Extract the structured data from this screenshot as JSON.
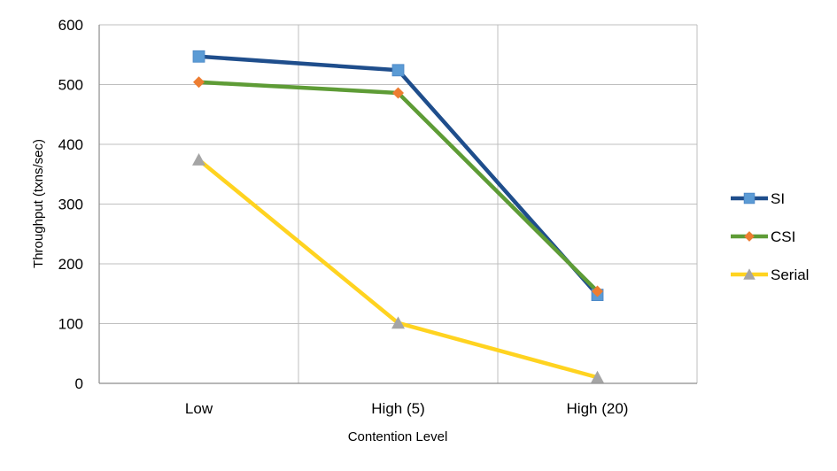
{
  "chart_data": {
    "type": "line",
    "categories": [
      "Low",
      "High (5)",
      "High (20)"
    ],
    "xlabel": "Contention Level",
    "ylabel": "Throughput (txns/sec)",
    "ylim": [
      0,
      600
    ],
    "yticks": [
      0,
      100,
      200,
      300,
      400,
      500,
      600
    ],
    "grid": true,
    "legend": "right",
    "series": [
      {
        "name": "SI",
        "values": [
          547,
          524,
          148
        ],
        "color": "#1F4E8C",
        "marker_color": "#5B9BD5",
        "marker": "square"
      },
      {
        "name": "CSI",
        "values": [
          504,
          486,
          154
        ],
        "color": "#5E9C36",
        "marker_color": "#ED7D31",
        "marker": "diamond"
      },
      {
        "name": "Serial",
        "values": [
          374,
          101,
          10
        ],
        "color": "#FFD320",
        "marker_color": "#A5A5A5",
        "marker": "triangle"
      }
    ]
  }
}
